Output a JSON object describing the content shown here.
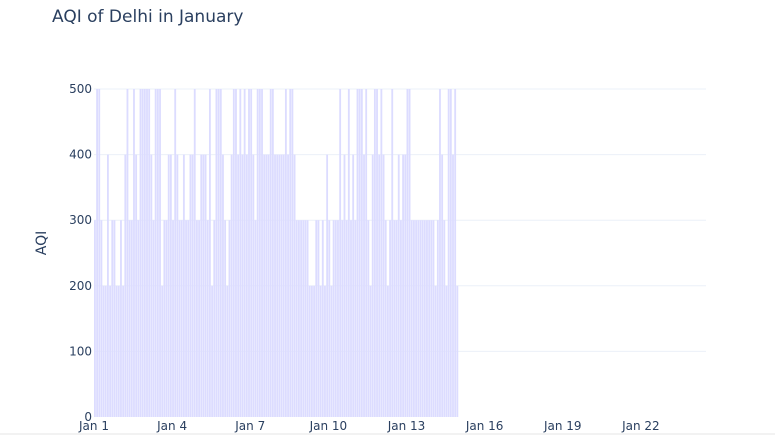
{
  "chart_data": {
    "type": "bar",
    "title": "AQI of Delhi in January",
    "xlabel": "",
    "ylabel": "AQI",
    "ylim": [
      0,
      500
    ],
    "yticks": [
      0,
      100,
      200,
      300,
      400,
      500
    ],
    "xticks": [
      "Jan 1",
      "Jan 4",
      "Jan 7",
      "Jan 10",
      "Jan 13",
      "Jan 16",
      "Jan 19",
      "Jan 22"
    ],
    "x_range_days": [
      0,
      23.5
    ],
    "hours_per_bar": 2,
    "grid": true,
    "bar_color": "#dcdcff",
    "values": [
      300,
      500,
      500,
      300,
      200,
      200,
      400,
      200,
      300,
      300,
      200,
      200,
      300,
      200,
      400,
      500,
      300,
      300,
      500,
      400,
      300,
      500,
      500,
      500,
      500,
      500,
      400,
      300,
      500,
      500,
      500,
      200,
      300,
      300,
      400,
      400,
      300,
      500,
      400,
      300,
      300,
      400,
      300,
      300,
      400,
      400,
      500,
      300,
      300,
      400,
      400,
      400,
      300,
      500,
      200,
      300,
      500,
      500,
      500,
      400,
      300,
      200,
      300,
      400,
      500,
      500,
      400,
      500,
      400,
      500,
      400,
      500,
      500,
      400,
      300,
      500,
      500,
      500,
      400,
      400,
      400,
      500,
      500,
      400,
      400,
      400,
      400,
      400,
      500,
      400,
      500,
      500,
      400,
      300,
      300,
      300,
      300,
      300,
      300,
      200,
      200,
      200,
      300,
      300,
      200,
      300,
      200,
      400,
      300,
      200,
      300,
      300,
      300,
      500,
      300,
      400,
      300,
      500,
      300,
      400,
      300,
      500,
      500,
      500,
      400,
      500,
      300,
      200,
      400,
      500,
      500,
      400,
      500,
      400,
      300,
      200,
      300,
      500,
      300,
      300,
      400,
      300,
      400,
      400,
      500,
      500,
      300,
      300,
      300,
      300,
      300,
      300,
      300,
      300,
      300,
      300,
      300,
      200,
      300,
      500,
      400,
      300,
      200,
      500,
      500,
      400,
      500,
      200
    ]
  }
}
